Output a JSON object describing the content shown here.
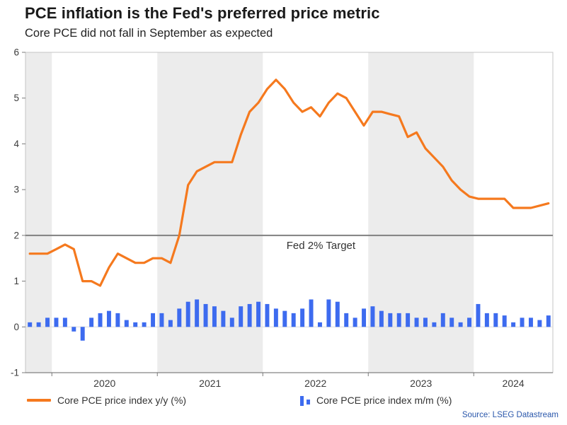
{
  "header": {
    "title": "PCE inflation is the Fed's preferred price metric",
    "subtitle": "Core PCE did not fall in September as expected"
  },
  "legend": {
    "yy": "Core PCE price index y/y (%)",
    "mm": "Core PCE price index m/m (%)"
  },
  "footer": {
    "source": "Source: LSEG Datastream",
    "source_color": "#2a57ab"
  },
  "chart_data": {
    "type": "line+bar",
    "title": "PCE inflation is the Fed's preferred price metric",
    "subtitle": "Core PCE did not fall in September as expected",
    "x_monthly": [
      "2019-10",
      "2019-11",
      "2019-12",
      "2020-01",
      "2020-02",
      "2020-03",
      "2020-04",
      "2020-05",
      "2020-06",
      "2020-07",
      "2020-08",
      "2020-09",
      "2020-10",
      "2020-11",
      "2020-12",
      "2021-01",
      "2021-02",
      "2021-03",
      "2021-04",
      "2021-05",
      "2021-06",
      "2021-07",
      "2021-08",
      "2021-09",
      "2021-10",
      "2021-11",
      "2021-12",
      "2022-01",
      "2022-02",
      "2022-03",
      "2022-04",
      "2022-05",
      "2022-06",
      "2022-07",
      "2022-08",
      "2022-09",
      "2022-10",
      "2022-11",
      "2022-12",
      "2023-01",
      "2023-02",
      "2023-03",
      "2023-04",
      "2023-05",
      "2023-06",
      "2023-07",
      "2023-08",
      "2023-09",
      "2023-10",
      "2023-11",
      "2023-12",
      "2024-01",
      "2024-02",
      "2024-03",
      "2024-04",
      "2024-05",
      "2024-06",
      "2024-07",
      "2024-08",
      "2024-09"
    ],
    "series": [
      {
        "name": "Core PCE price index y/y (%)",
        "type": "line",
        "color": "#f5791e",
        "values": [
          1.6,
          1.6,
          1.6,
          1.7,
          1.8,
          1.7,
          1.0,
          1.0,
          0.9,
          1.3,
          1.6,
          1.5,
          1.4,
          1.4,
          1.5,
          1.5,
          1.4,
          2.0,
          3.1,
          3.4,
          3.5,
          3.6,
          3.6,
          3.6,
          4.2,
          4.7,
          4.9,
          5.2,
          5.4,
          5.2,
          4.9,
          4.7,
          4.8,
          4.6,
          4.9,
          5.1,
          5.0,
          4.7,
          4.4,
          4.7,
          4.7,
          4.65,
          4.6,
          4.15,
          4.25,
          3.9,
          3.7,
          3.5,
          3.2,
          3.0,
          2.85,
          2.8,
          2.8,
          2.8,
          2.8,
          2.6,
          2.6,
          2.6,
          2.65,
          2.7
        ]
      },
      {
        "name": "Core PCE price index m/m (%)",
        "type": "bar",
        "color": "#3d6bef",
        "values": [
          0.1,
          0.1,
          0.2,
          0.2,
          0.2,
          -0.1,
          -0.3,
          0.2,
          0.3,
          0.35,
          0.3,
          0.15,
          0.1,
          0.1,
          0.3,
          0.3,
          0.15,
          0.4,
          0.55,
          0.6,
          0.5,
          0.45,
          0.35,
          0.2,
          0.45,
          0.5,
          0.55,
          0.5,
          0.4,
          0.35,
          0.3,
          0.4,
          0.6,
          0.1,
          0.6,
          0.55,
          0.3,
          0.2,
          0.4,
          0.45,
          0.35,
          0.3,
          0.3,
          0.3,
          0.2,
          0.2,
          0.1,
          0.3,
          0.2,
          0.1,
          0.2,
          0.5,
          0.3,
          0.3,
          0.25,
          0.1,
          0.2,
          0.2,
          0.15,
          0.25
        ]
      }
    ],
    "ylim": [
      -1,
      6
    ],
    "yticks": [
      -1,
      0,
      1,
      2,
      3,
      4,
      5,
      6
    ],
    "x_year_labels": [
      "2020",
      "2021",
      "2022",
      "2023",
      "2024"
    ],
    "target_line": {
      "value": 2,
      "label": "Fed 2% Target",
      "color": "#808080"
    },
    "shaded_years": [
      "2019",
      "2021",
      "2023"
    ],
    "band_color": "#ececec",
    "grid": false,
    "legend_position": "bottom"
  }
}
